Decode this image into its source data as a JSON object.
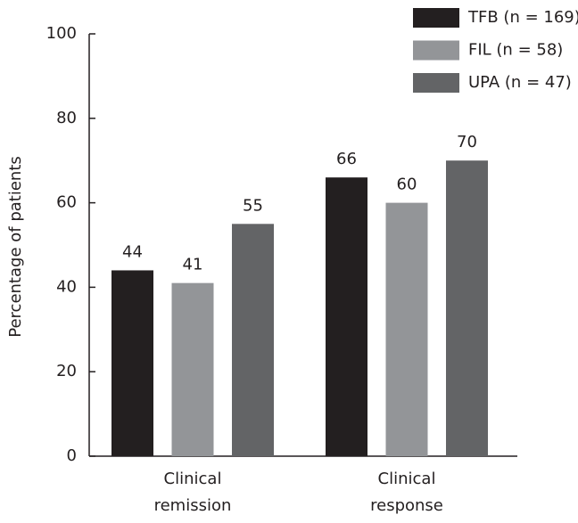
{
  "chart_data": {
    "type": "bar",
    "y_label": "Percentage of patients",
    "categories": [
      "Clinical remission",
      "Clinical response"
    ],
    "series": [
      {
        "name": "TFB (n = 169)",
        "color": "#231f20",
        "values": [
          44,
          66
        ]
      },
      {
        "name": "FIL (n = 58)",
        "color": "#939598",
        "values": [
          41,
          60
        ]
      },
      {
        "name": "UPA (n = 47)",
        "color": "#636466",
        "values": [
          55,
          70
        ]
      }
    ],
    "ylim": [
      0,
      100
    ],
    "yticks": [
      0,
      20,
      40,
      60,
      80,
      100
    ],
    "legend": "top-right",
    "grid": false
  }
}
